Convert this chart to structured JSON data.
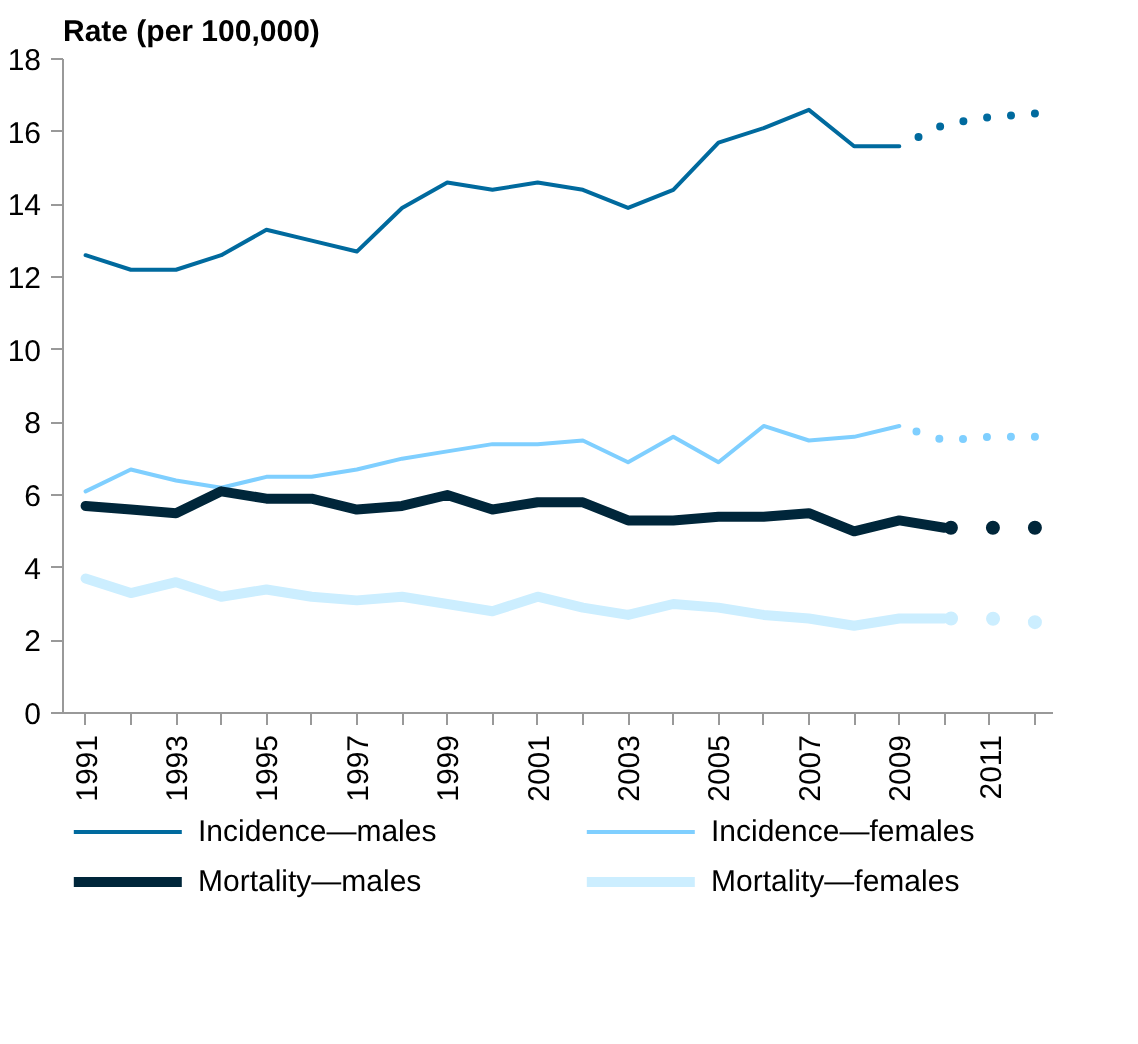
{
  "chart_data": {
    "type": "line",
    "ylabel": "Rate (per 100,000)",
    "xlim": [
      1990.5,
      2012.4
    ],
    "ylim": [
      0,
      18
    ],
    "xticks": [
      1991,
      {
        "value": 1992,
        "label": null
      },
      1993,
      {
        "value": 1994,
        "label": null
      },
      1995,
      {
        "value": 1996,
        "label": null
      },
      1997,
      {
        "value": 1998,
        "label": null
      },
      1999,
      {
        "value": 2000,
        "label": null
      },
      2001,
      {
        "value": 2002,
        "label": null
      },
      2003,
      {
        "value": 2004,
        "label": null
      },
      2005,
      {
        "value": 2006,
        "label": null
      },
      2007,
      {
        "value": 2008,
        "label": null
      },
      2009,
      {
        "value": 2010,
        "label": null
      },
      2011,
      {
        "value": 2012,
        "label": null
      }
    ],
    "yticks": [
      0,
      2,
      4,
      6,
      8,
      10,
      12,
      14,
      16,
      18
    ],
    "grid": false,
    "legend": "bottom",
    "marker": "none",
    "series": [
      {
        "name": "Incidence—males",
        "color": "#006a9e",
        "line_style": "solid",
        "x": [
          1991,
          1992,
          1993,
          1994,
          1995,
          1996,
          1997,
          1998,
          1999,
          2000,
          2001,
          2002,
          2003,
          2004,
          2005,
          2006,
          2007,
          2008,
          2009
        ],
        "values": [
          12.6,
          12.2,
          12.2,
          12.6,
          13.3,
          13.0,
          12.7,
          13.9,
          14.6,
          14.4,
          14.6,
          14.4,
          13.9,
          14.4,
          15.7,
          16.1,
          16.6,
          15.6,
          15.6
        ]
      },
      {
        "name": "Incidence—females",
        "color": "#7fcfff",
        "line_style": "solid",
        "x": [
          1991,
          1992,
          1993,
          1994,
          1995,
          1996,
          1997,
          1998,
          1999,
          2000,
          2001,
          2002,
          2003,
          2004,
          2005,
          2006,
          2007,
          2008,
          2009
        ],
        "values": [
          6.1,
          6.7,
          6.4,
          6.2,
          6.5,
          6.5,
          6.7,
          7.0,
          7.2,
          7.4,
          7.4,
          7.5,
          6.9,
          7.6,
          6.9,
          7.9,
          7.5,
          7.6,
          7.9
        ]
      },
      {
        "name": "Mortality—males",
        "color": "#00263a",
        "line_style": "solid",
        "x": [
          1991,
          1992,
          1993,
          1994,
          1995,
          1996,
          1997,
          1998,
          1999,
          2000,
          2001,
          2002,
          2003,
          2004,
          2005,
          2006,
          2007,
          2008,
          2009,
          2010
        ],
        "values": [
          5.7,
          5.6,
          5.5,
          6.1,
          5.9,
          5.9,
          5.6,
          5.7,
          6.0,
          5.6,
          5.8,
          5.8,
          5.3,
          5.3,
          5.4,
          5.4,
          5.5,
          5.0,
          5.3,
          5.1
        ]
      },
      {
        "name": "Mortality—females",
        "color": "#cceeff",
        "line_style": "solid",
        "x": [
          1991,
          1992,
          1993,
          1994,
          1995,
          1996,
          1997,
          1998,
          1999,
          2000,
          2001,
          2002,
          2003,
          2004,
          2005,
          2006,
          2007,
          2008,
          2009,
          2010
        ],
        "values": [
          3.7,
          3.3,
          3.6,
          3.2,
          3.4,
          3.2,
          3.1,
          3.2,
          3.0,
          2.8,
          3.2,
          2.9,
          2.7,
          3.0,
          2.9,
          2.7,
          2.6,
          2.4,
          2.6,
          2.6
        ]
      },
      {
        "color": "#006a9e",
        "line_style": "dotted",
        "x": [
          2009,
          2010,
          2011,
          2012
        ],
        "values": [
          15.6,
          16.2,
          16.4,
          16.5
        ]
      },
      {
        "color": "#7fcfff",
        "line_style": "dotted",
        "x": [
          2009,
          2010,
          2011,
          2012
        ],
        "values": [
          7.9,
          7.5,
          7.6,
          7.6
        ]
      },
      {
        "color": "#00263a",
        "line_style": "dotted",
        "x": [
          2010,
          2011,
          2012
        ],
        "values": [
          5.1,
          5.1,
          5.1
        ]
      },
      {
        "color": "#cceeff",
        "line_style": "dotted",
        "x": [
          2010,
          2011,
          2012
        ],
        "values": [
          2.6,
          2.6,
          2.5
        ]
      }
    ]
  }
}
